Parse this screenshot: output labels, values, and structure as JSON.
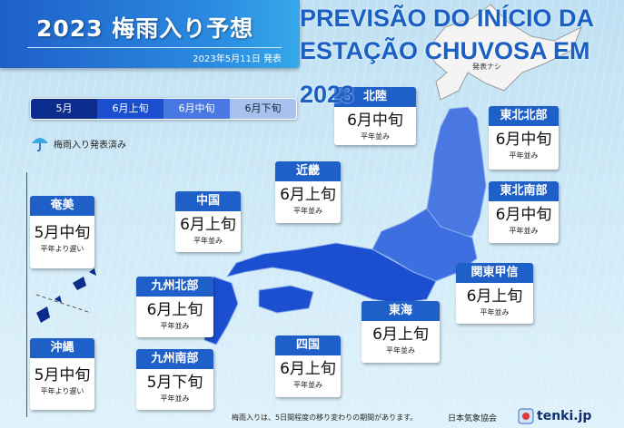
{
  "header": {
    "title": "2023 梅雨入り予想",
    "date": "2023年5月11日 発表"
  },
  "overlay": {
    "lines": [
      "PREVISÃO DO INÍCIO DA",
      "ESTAÇÃO CHUVOSA EM",
      "2023"
    ]
  },
  "legend": {
    "items": [
      {
        "label": "5月",
        "color": "#0b2c8c"
      },
      {
        "label": "6月上旬",
        "color": "#1b4fd0"
      },
      {
        "label": "6月中旬",
        "color": "#4a78e2"
      },
      {
        "label": "6月下旬",
        "color": "#a9c1ef"
      }
    ],
    "announced_label": "梅雨入り発表済み",
    "announced_icon": "umbrella-icon"
  },
  "hokkaido": {
    "note": "発表ナシ"
  },
  "regions": [
    {
      "name": "北陸",
      "period": "6月中旬",
      "note": "平年並み"
    },
    {
      "name": "東北北部",
      "period": "6月中旬",
      "note": "平年並み"
    },
    {
      "name": "東北南部",
      "period": "6月中旬",
      "note": "平年並み"
    },
    {
      "name": "近畿",
      "period": "6月上旬",
      "note": "平年並み"
    },
    {
      "name": "中国",
      "period": "6月上旬",
      "note": "平年並み"
    },
    {
      "name": "奄美",
      "period": "5月中旬",
      "note": "平年より遅い"
    },
    {
      "name": "関東甲信",
      "period": "6月上旬",
      "note": "平年並み"
    },
    {
      "name": "東海",
      "period": "6月上旬",
      "note": "平年並み"
    },
    {
      "name": "九州北部",
      "period": "6月上旬",
      "note": "平年並み"
    },
    {
      "name": "四国",
      "period": "6月上旬",
      "note": "平年並み"
    },
    {
      "name": "九州南部",
      "period": "5月下旬",
      "note": "平年並み"
    },
    {
      "name": "沖縄",
      "period": "5月中旬",
      "note": "平年より遅い"
    }
  ],
  "footer": {
    "note": "梅雨入りは、5日間程度の移り変わりの期間があります。",
    "org": "日本気象協会",
    "logo": "tenki.jp"
  }
}
